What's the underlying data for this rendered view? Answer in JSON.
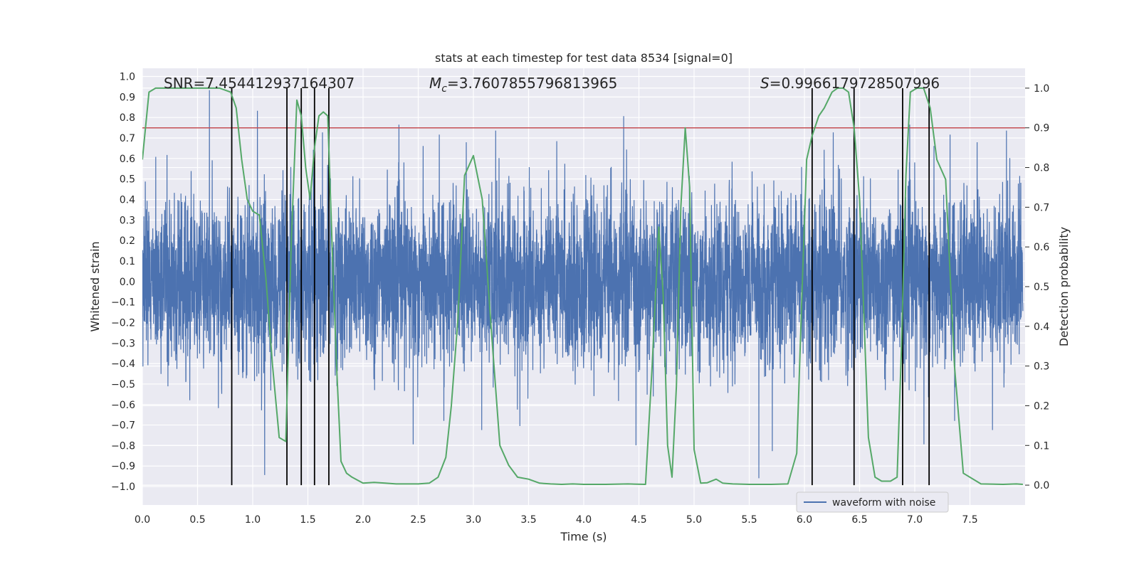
{
  "chart_data": {
    "type": "line",
    "title": "stats at each timestep for test data 8534 [signal=0]",
    "xlabel": "Time (s)",
    "ylabel_left": "Whitened strain",
    "ylabel_right": "Detection probability",
    "xlim": [
      0.0,
      8.0
    ],
    "ylim_left": [
      -1.09,
      1.04
    ],
    "ylim_right": [
      -0.05,
      1.05
    ],
    "x_ticks": [
      "0.0",
      "0.5",
      "1.0",
      "1.5",
      "2.0",
      "2.5",
      "3.0",
      "3.5",
      "4.0",
      "4.5",
      "5.0",
      "5.5",
      "6.0",
      "6.5",
      "7.0",
      "7.5"
    ],
    "y_ticks_left": [
      "1.0",
      "0.9",
      "0.8",
      "0.7",
      "0.6",
      "0.5",
      "0.4",
      "0.3",
      "0.2",
      "0.1",
      "0.0",
      "−0.1",
      "−0.2",
      "−0.3",
      "−0.4",
      "−0.5",
      "−0.6",
      "−0.7",
      "−0.8",
      "−0.9",
      "−1.0"
    ],
    "y_ticks_right": [
      "1.0",
      "0.9",
      "0.8",
      "0.7",
      "0.6",
      "0.5",
      "0.4",
      "0.3",
      "0.2",
      "0.1",
      "0.0"
    ],
    "grid": true,
    "annotations": {
      "snr": "SNR=7.454412937164307",
      "mc_symbol": "M",
      "mc_subscript": "c",
      "mc_value": "=3.7607855796813965",
      "s_symbol": "S",
      "s_value": "=0.9966179728507996"
    },
    "legend": {
      "position": "bottom-right",
      "label": "waveform with noise"
    },
    "threshold": {
      "value": 0.9,
      "axis": "right",
      "color": "#c44e52"
    },
    "vertical_lines": [
      0.81,
      1.31,
      1.44,
      1.56,
      1.69,
      6.07,
      6.45,
      6.89,
      7.13
    ],
    "vertical_line_range_right": [
      0.0,
      1.0
    ],
    "colors": {
      "strain": "#4c72b0",
      "probability": "#55a868",
      "vlines": "#000000",
      "background": "#eaeaf2",
      "grid": "#ffffff"
    },
    "series": [
      {
        "name": "Detection probability",
        "axis": "right",
        "x": [
          0.0,
          0.06,
          0.12,
          0.2,
          0.3,
          0.4,
          0.5,
          0.6,
          0.7,
          0.8,
          0.85,
          0.9,
          0.95,
          1.0,
          1.06,
          1.12,
          1.18,
          1.24,
          1.3,
          1.35,
          1.4,
          1.44,
          1.48,
          1.52,
          1.56,
          1.6,
          1.64,
          1.68,
          1.72,
          1.76,
          1.8,
          1.85,
          1.9,
          2.0,
          2.1,
          2.2,
          2.3,
          2.4,
          2.5,
          2.6,
          2.68,
          2.75,
          2.8,
          2.86,
          2.92,
          3.0,
          3.08,
          3.16,
          3.24,
          3.32,
          3.4,
          3.5,
          3.6,
          3.7,
          3.8,
          3.9,
          4.0,
          4.2,
          4.4,
          4.56,
          4.62,
          4.68,
          4.72,
          4.76,
          4.8,
          4.84,
          4.88,
          4.92,
          4.96,
          5.0,
          5.06,
          5.12,
          5.2,
          5.26,
          5.35,
          5.5,
          5.7,
          5.85,
          5.93,
          5.98,
          6.02,
          6.07,
          6.13,
          6.18,
          6.25,
          6.3,
          6.35,
          6.4,
          6.45,
          6.5,
          6.58,
          6.64,
          6.7,
          6.78,
          6.84,
          6.88,
          6.92,
          6.96,
          7.02,
          7.08,
          7.14,
          7.2,
          7.28,
          7.36,
          7.44,
          7.6,
          7.8,
          7.92,
          7.98
        ],
        "values": [
          0.82,
          0.99,
          1.0,
          1.0,
          1.0,
          1.0,
          1.0,
          1.0,
          1.0,
          0.99,
          0.95,
          0.82,
          0.72,
          0.69,
          0.68,
          0.52,
          0.3,
          0.12,
          0.11,
          0.62,
          0.97,
          0.93,
          0.8,
          0.72,
          0.85,
          0.93,
          0.94,
          0.93,
          0.6,
          0.3,
          0.06,
          0.03,
          0.02,
          0.005,
          0.007,
          0.005,
          0.003,
          0.003,
          0.003,
          0.005,
          0.02,
          0.07,
          0.2,
          0.42,
          0.78,
          0.83,
          0.72,
          0.4,
          0.1,
          0.05,
          0.02,
          0.015,
          0.005,
          0.003,
          0.002,
          0.003,
          0.002,
          0.002,
          0.003,
          0.002,
          0.3,
          0.65,
          0.48,
          0.1,
          0.02,
          0.25,
          0.7,
          0.9,
          0.75,
          0.09,
          0.005,
          0.006,
          0.015,
          0.005,
          0.003,
          0.002,
          0.002,
          0.003,
          0.08,
          0.5,
          0.82,
          0.88,
          0.93,
          0.95,
          0.99,
          1.0,
          1.0,
          0.99,
          0.9,
          0.72,
          0.12,
          0.02,
          0.01,
          0.01,
          0.02,
          0.35,
          0.78,
          0.99,
          1.0,
          1.0,
          0.95,
          0.82,
          0.77,
          0.3,
          0.03,
          0.003,
          0.002,
          0.003,
          0.002
        ]
      },
      {
        "name": "waveform with noise",
        "axis": "left",
        "description": "dense whitened strain samples, envelope approximately ±0.35 with spikes to ±0.95"
      }
    ]
  }
}
